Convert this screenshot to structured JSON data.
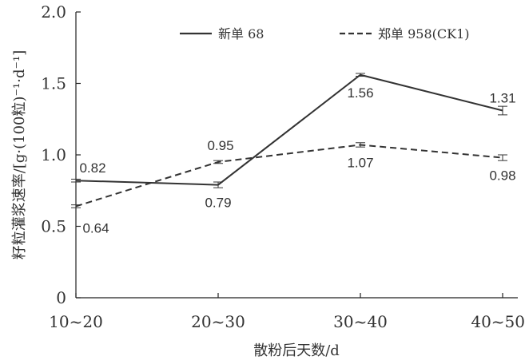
{
  "chart_data": {
    "type": "line",
    "title": "",
    "xlabel": "散粉后天数/d",
    "ylabel": "籽粒灌浆速率/[g·(100粒)⁻¹·d⁻¹]",
    "categories": [
      "10~20",
      "20~30",
      "30~40",
      "40~50"
    ],
    "ylim": [
      0,
      2.0
    ],
    "yticks": [
      "0",
      "0.5",
      "1.0",
      "1.5",
      "2.0"
    ],
    "grid": false,
    "legend_position": "top",
    "series": [
      {
        "name": "新单 68",
        "line_style": "solid",
        "color": "#333333",
        "values": [
          0.82,
          0.79,
          1.56,
          1.31
        ],
        "labels": [
          "0.82",
          "0.79",
          "1.56",
          "1.31"
        ],
        "error": [
          0.01,
          0.02,
          0.01,
          0.03
        ]
      },
      {
        "name": "郑单 958(CK1)",
        "line_style": "dashed",
        "color": "#333333",
        "values": [
          0.64,
          0.95,
          1.07,
          0.98
        ],
        "labels": [
          "0.64",
          "0.95",
          "1.07",
          "0.98"
        ],
        "error": [
          0.01,
          0.01,
          0.015,
          0.02
        ]
      }
    ]
  }
}
